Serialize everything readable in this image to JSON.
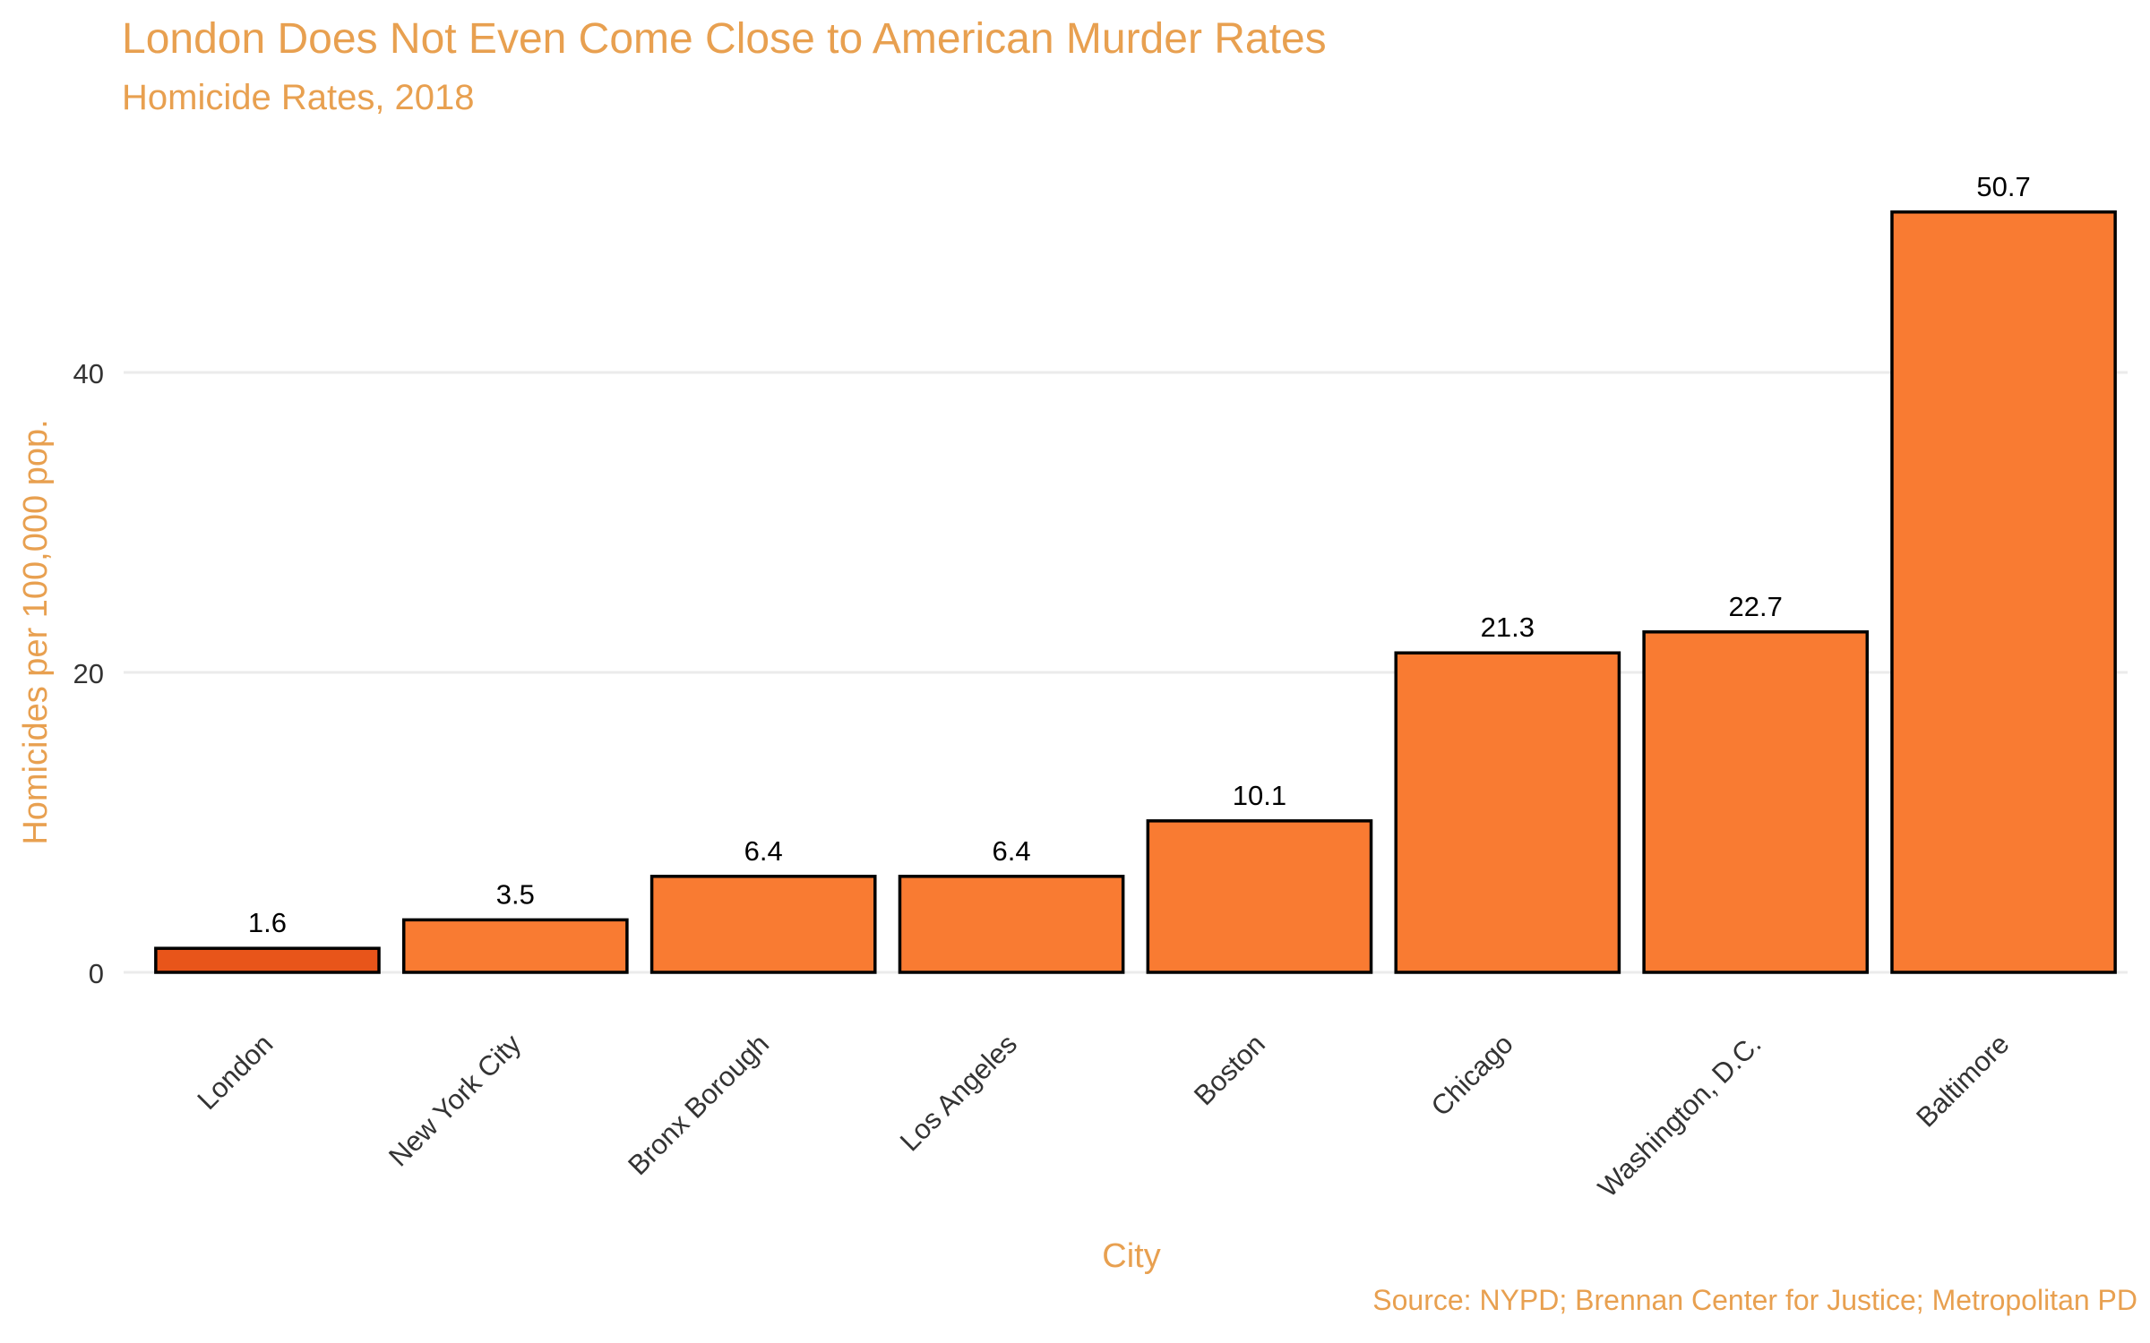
{
  "title": "London Does Not Even Come Close to American Murder Rates",
  "subtitle": "Homicide Rates, 2018",
  "caption": "Source: NYPD; Brennan Center for Justice; Metropolitan PD",
  "colors": {
    "title": "#e8a050",
    "bar_default": "#f97b32",
    "bar_highlight": "#e8551a",
    "bar_outline": "#000000",
    "grid": "#ebebeb",
    "tick_text": "#333333"
  },
  "chart_data": {
    "type": "bar",
    "categories": [
      "London",
      "New York City",
      "Bronx Borough",
      "Los Angeles",
      "Boston",
      "Chicago",
      "Washington, D.C.",
      "Baltimore"
    ],
    "values": [
      1.6,
      3.5,
      6.4,
      6.4,
      10.1,
      21.3,
      22.7,
      50.7
    ],
    "data_labels": [
      "1.6",
      "3.5",
      "6.4",
      "6.4",
      "10.1",
      "21.3",
      "22.7",
      "50.7"
    ],
    "highlight_category": "London",
    "xlabel": "City",
    "ylabel": "Homicides per 100,000 pop.",
    "yticks": [
      0,
      20,
      40
    ],
    "ylim": [
      0,
      53
    ],
    "grid": true,
    "legend": false
  }
}
